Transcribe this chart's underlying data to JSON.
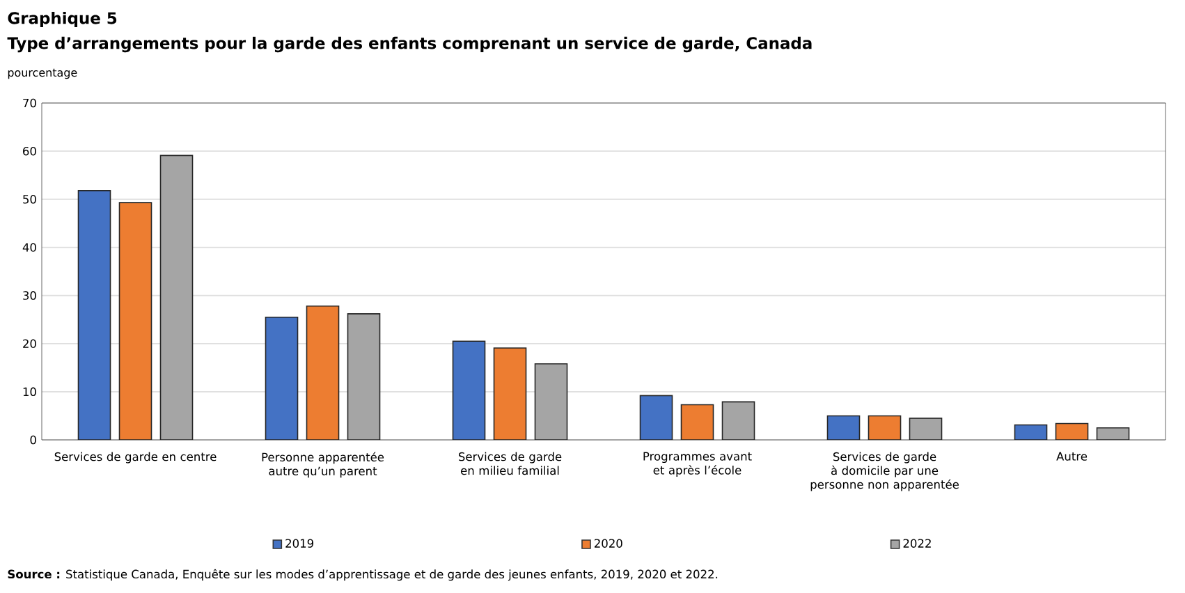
{
  "chart_data": {
    "type": "bar",
    "title": "Graphique 5",
    "subtitle": "Type d’arrangements pour la garde des enfants comprenant un service de garde, Canada",
    "ylabel": "pourcentage",
    "categories": [
      "Services de garde en centre",
      "Personne apparentée autre qu’un parent",
      "Services de garde en milieu familial",
      "Programmes avant et après l’école",
      "Services de garde à domicile par une personne non apparentée",
      "Autre"
    ],
    "series": [
      {
        "name": "2019",
        "color": "#4472c4",
        "values": [
          51.8,
          25.5,
          20.5,
          9.2,
          5.0,
          3.1
        ]
      },
      {
        "name": "2020",
        "color": "#ed7d31",
        "values": [
          49.3,
          27.8,
          19.1,
          7.3,
          5.0,
          3.4
        ]
      },
      {
        "name": "2022",
        "color": "#a5a5a5",
        "values": [
          59.1,
          26.2,
          15.8,
          7.9,
          4.5,
          2.5
        ]
      }
    ],
    "ylim": [
      0,
      70
    ],
    "yticks": [
      0,
      10,
      20,
      30,
      40,
      50,
      60,
      70
    ],
    "grid": "y",
    "legend": "bottom",
    "annotations": [
      "**Source :** Statistique  Canada, Enquête sur les modes d’apprentissage et de garde des jeunes enfants, 2019, 2020 et 2022."
    ]
  }
}
